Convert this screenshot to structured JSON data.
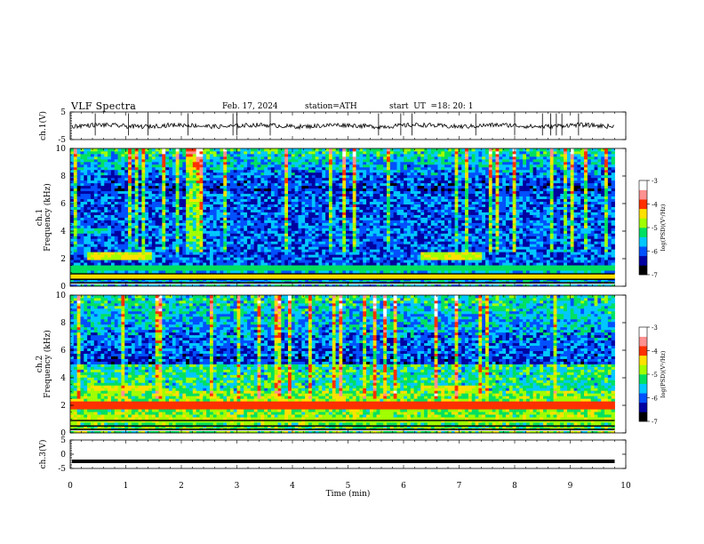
{
  "header": {
    "title": "VLF  Spectra",
    "date": "Feb. 17, 2024",
    "station": "station=ATH",
    "start_label": "start  UT  =",
    "start_time": "18: 20: 1"
  },
  "chart_data": [
    {
      "type": "line",
      "name": "ch1-waveform",
      "ylabel": "ch.1(V)",
      "ylim": [
        -5,
        5
      ],
      "ytick_labels": [
        "5",
        "-5"
      ],
      "xlim": [
        0,
        10
      ],
      "level": 0,
      "spike_times": [
        0.45,
        1.05,
        1.4,
        2.12,
        2.93,
        3.0,
        3.6,
        5.55,
        5.95,
        6.15,
        7.3,
        8.0,
        8.5,
        8.65,
        8.75,
        8.85,
        9.15
      ]
    },
    {
      "type": "heatmap",
      "name": "ch1-spectrogram",
      "ylabel": "ch.1\nFrequency (kHz)",
      "ylim": [
        0,
        10
      ],
      "ytick_labels": [
        "0",
        "2",
        "4",
        "6",
        "8",
        "10"
      ],
      "xlim": [
        0,
        10
      ],
      "colorbar": {
        "label": "log(PSD)(V²/Hz)",
        "range": [
          -7,
          -3
        ],
        "tick_labels": [
          "-3",
          "-4",
          "-5",
          "-6",
          "-7"
        ],
        "colors": [
          "#000000",
          "#0000a0",
          "#0050ff",
          "#00c8ff",
          "#00e060",
          "#a0ff00",
          "#ffe000",
          "#ff3000",
          "#ff9090",
          "#ffffff"
        ]
      },
      "bands": [
        {
          "f": 2.2,
          "t": [
            0.3,
            1.5
          ],
          "level": -4.6
        },
        {
          "f": 2.2,
          "t": [
            6.3,
            7.4
          ],
          "level": -4.6
        },
        {
          "f": 1.4,
          "t": [
            0,
            9.8
          ],
          "level": -5.2
        },
        {
          "f": 0.8,
          "t": [
            0,
            9.8
          ],
          "level": -4.4
        },
        {
          "f": 4.0,
          "t": [
            0,
            0.7
          ],
          "level": -5.4
        }
      ]
    },
    {
      "type": "heatmap",
      "name": "ch2-spectrogram",
      "ylabel": "ch.2\nFrequency (kHz)",
      "ylim": [
        0,
        10
      ],
      "ytick_labels": [
        "0",
        "2",
        "4",
        "6",
        "8",
        "10"
      ],
      "xlim": [
        0,
        10
      ],
      "colorbar": {
        "label": "log(PSD)(V²/Hz)",
        "range": [
          -7,
          -3
        ],
        "tick_labels": [
          "-3",
          "-4",
          "-5",
          "-6",
          "-7"
        ],
        "colors": [
          "#000000",
          "#0000a0",
          "#0050ff",
          "#00c8ff",
          "#00e060",
          "#a0ff00",
          "#ffe000",
          "#ff3000",
          "#ff9090",
          "#ffffff"
        ]
      },
      "bands": [
        {
          "f": 2.0,
          "t": [
            0,
            9.8
          ],
          "level": -4.0
        },
        {
          "f": 3.3,
          "t": [
            0.3,
            1.5
          ],
          "level": -4.5
        },
        {
          "f": 3.3,
          "t": [
            6.3,
            7.4
          ],
          "level": -4.5
        },
        {
          "f": 1.0,
          "t": [
            0,
            9.8
          ],
          "level": -4.8
        }
      ]
    },
    {
      "type": "line",
      "name": "ch3-waveform",
      "ylabel": "ch.3(V)",
      "ylim": [
        -5,
        5
      ],
      "ytick_labels": [
        "5",
        "0",
        "-5"
      ],
      "xlim": [
        0,
        10
      ],
      "level": -2.5
    }
  ],
  "xaxis": {
    "label": "Time  (min)",
    "tick_labels": [
      "0",
      "1",
      "2",
      "3",
      "4",
      "5",
      "6",
      "7",
      "8",
      "9",
      "10"
    ],
    "range": [
      0,
      10
    ],
    "data_end": 9.8
  }
}
